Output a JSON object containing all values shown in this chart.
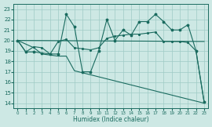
{
  "xlabel": "Humidex (Indice chaleur)",
  "bg_color": "#cde8e4",
  "line_color": "#1a6b5f",
  "grid_color": "#9ecbc5",
  "xlim": [
    -0.5,
    23.5
  ],
  "ylim": [
    13.5,
    23.5
  ],
  "xticks": [
    0,
    1,
    2,
    3,
    4,
    5,
    6,
    7,
    8,
    9,
    10,
    11,
    12,
    13,
    14,
    15,
    16,
    17,
    18,
    19,
    20,
    21,
    22,
    23
  ],
  "yticks": [
    14,
    15,
    16,
    17,
    18,
    19,
    20,
    21,
    22,
    23
  ],
  "line1_x": [
    0,
    1,
    2,
    3,
    4,
    5,
    6,
    7,
    8,
    9,
    10,
    11,
    12,
    13,
    14,
    15,
    16,
    17,
    18,
    19,
    20,
    21,
    22,
    23
  ],
  "line1_y": [
    20,
    18.9,
    18.9,
    18.8,
    18.7,
    18.7,
    22.5,
    21.3,
    17.0,
    17.0,
    19.0,
    22.0,
    20.0,
    21.0,
    20.5,
    21.8,
    21.8,
    22.5,
    21.8,
    21.0,
    21.0,
    21.5,
    19.0,
    14.1
  ],
  "line2_x": [
    0,
    1,
    2,
    3,
    4,
    5,
    6,
    7,
    8,
    9,
    10,
    11,
    12,
    13,
    14,
    15,
    16,
    17,
    18,
    19,
    20,
    21,
    22,
    23
  ],
  "line2_y": [
    20.0,
    18.9,
    19.4,
    19.3,
    18.7,
    19.9,
    20.1,
    19.3,
    19.2,
    19.1,
    19.3,
    20.2,
    20.4,
    20.5,
    20.6,
    20.6,
    20.7,
    20.8,
    19.9,
    19.9,
    19.9,
    19.8,
    19.0,
    14.1
  ],
  "line3_x": [
    0,
    2,
    3,
    4,
    5,
    6,
    7,
    23
  ],
  "line3_y": [
    20.0,
    19.3,
    18.7,
    18.6,
    18.5,
    18.5,
    17.1,
    14.0
  ],
  "line4_x": [
    0,
    23
  ],
  "line4_y": [
    20.0,
    19.9
  ]
}
